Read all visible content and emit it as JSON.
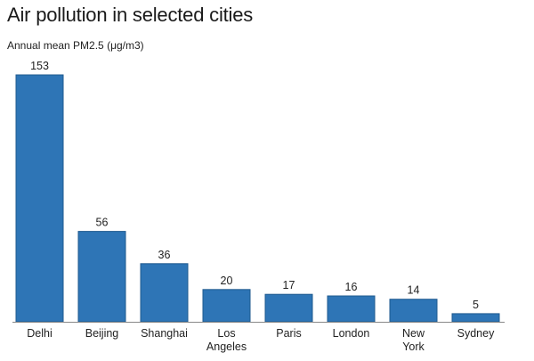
{
  "chart_data": {
    "type": "bar",
    "title": "Air pollution in selected cities",
    "subtitle": "Annual mean PM2.5 (μg/m3)",
    "categories": [
      "Delhi",
      "Beijing",
      "Shanghai",
      "Los Angeles",
      "Paris",
      "London",
      "New York",
      "Sydney"
    ],
    "values": [
      153,
      56,
      36,
      20,
      17,
      16,
      14,
      5
    ],
    "data_labels": [
      "153",
      "56",
      "36",
      "20",
      "17",
      "16",
      "14",
      "5"
    ],
    "ylim": [
      0,
      153
    ],
    "grid": false,
    "bar_color": "#2e75b6",
    "bar_edge_color": "#1f5a8f",
    "axis_color": "#888888"
  }
}
